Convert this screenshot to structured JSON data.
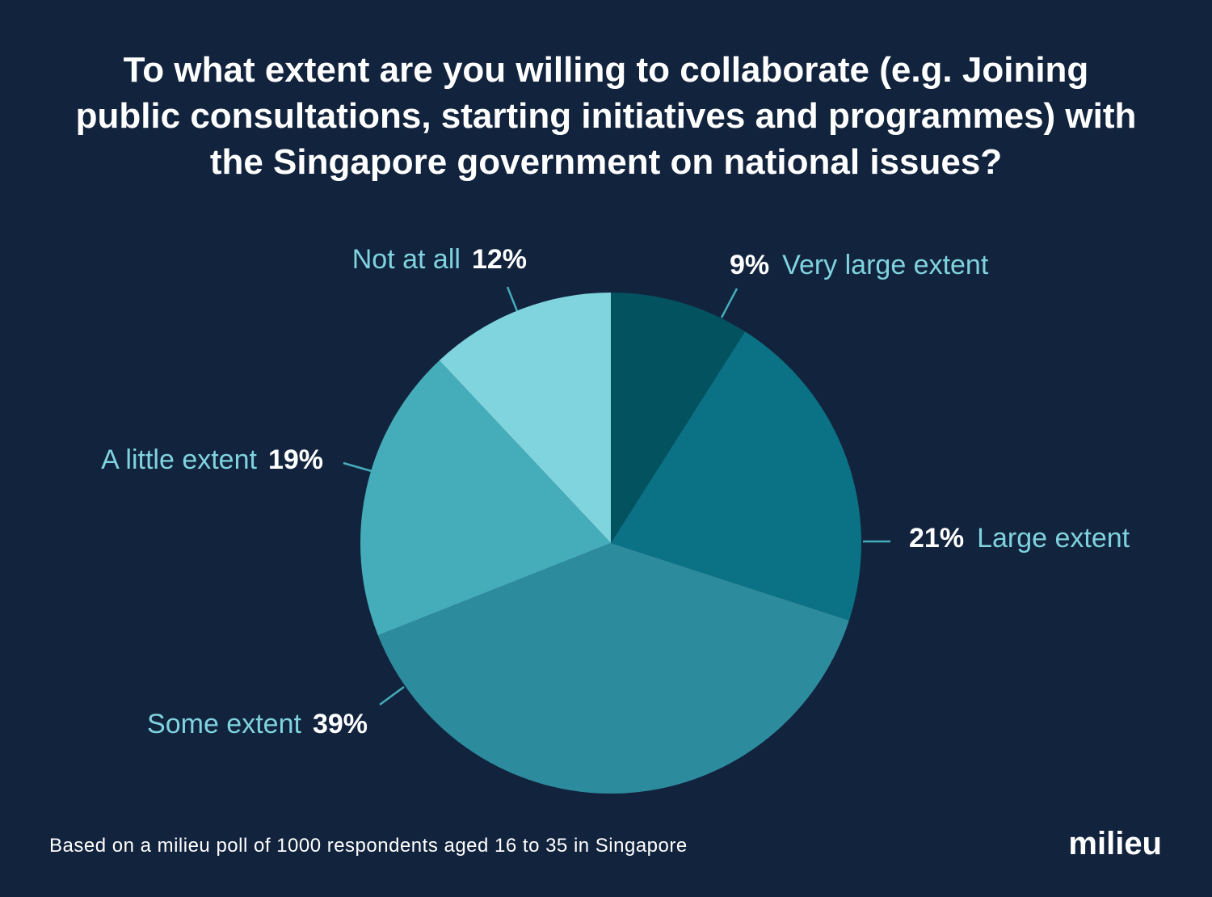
{
  "chart_data": {
    "type": "pie",
    "title": "To what extent are you willing to collaborate (e.g. Joining public consultations, starting initiatives and programmes) with the Singapore government on national issues?",
    "categories": [
      "Very large extent",
      "Large extent",
      "Some extent",
      "A little extent",
      "Not at all"
    ],
    "values": [
      9,
      21,
      39,
      19,
      12
    ],
    "value_labels": [
      "9%",
      "21%",
      "39%",
      "19%",
      "12%"
    ],
    "colors": [
      "#03525f",
      "#0b7285",
      "#2d8b9e",
      "#45adba",
      "#80d4de"
    ],
    "footnote": "Based on a milieu poll of 1000 respondents aged 16 to 35 in Singapore",
    "brand": "milieu"
  }
}
